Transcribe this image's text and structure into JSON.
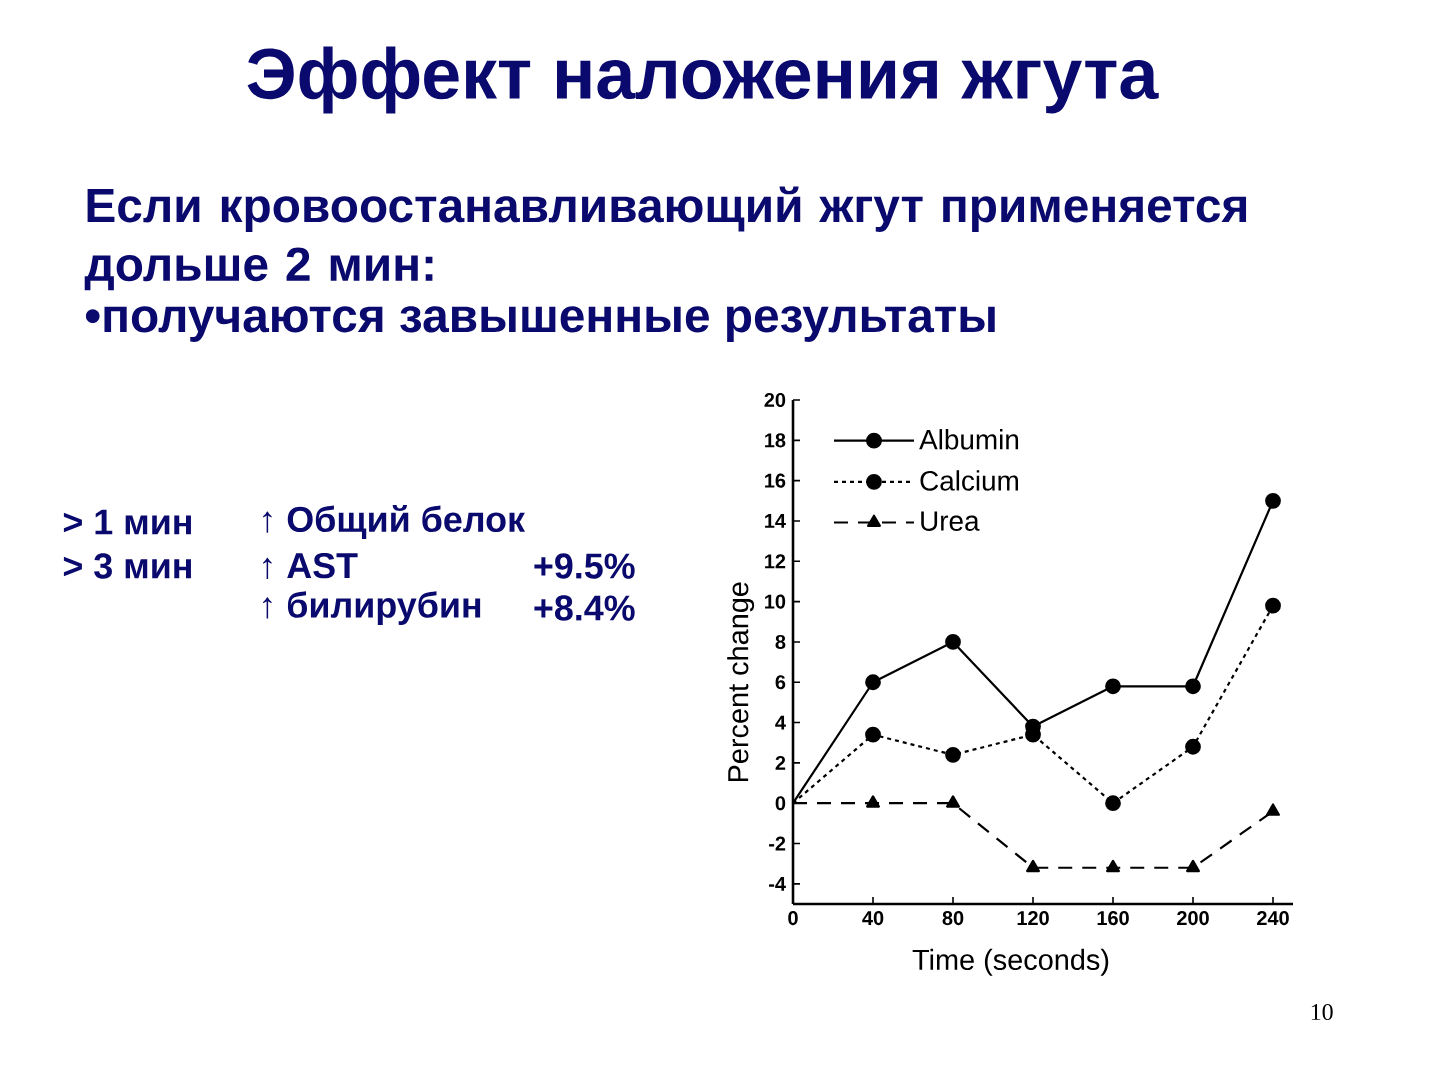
{
  "chart_data": {
    "type": "line",
    "title": "Эффект наложения жгута",
    "subtitle": "Если кровоостанавливающий жгут применяется дольше 2 мин:",
    "annotations": [
      "•получаются завышенные результаты",
      "> 1 мин",
      "> 3 мин",
      "↑ Общий белок",
      "↑ AST",
      "+9.5%",
      "↑ билирубин",
      "+8.4%",
      "10"
    ],
    "xlabel": "Time (seconds)",
    "ylabel": "Percent change",
    "x": [
      0,
      40,
      80,
      120,
      160,
      200,
      240
    ],
    "series": [
      {
        "name": "Albumin",
        "color": "#000000",
        "marker": "circle",
        "line_style": "solid",
        "values": [
          0,
          6,
          8,
          3.8,
          5.8,
          5.8,
          15
        ]
      },
      {
        "name": "Calcium",
        "color": "#000000",
        "marker": "circle",
        "line_style": "dotted",
        "values": [
          0,
          3.4,
          2.4,
          3.4,
          0,
          2.8,
          9.8
        ]
      },
      {
        "name": "Urea",
        "color": "#000000",
        "marker": "triangle",
        "line_style": "dashed",
        "values": [
          0,
          0,
          0,
          -3.2,
          -3.2,
          -3.2,
          -0.4
        ]
      }
    ],
    "xlim": [
      0,
      250
    ],
    "xticks": [
      0,
      40,
      80,
      120,
      160,
      200,
      240
    ],
    "ylim": [
      -5,
      20
    ],
    "yticks": [
      -4,
      -2,
      0,
      2,
      4,
      6,
      8,
      10,
      12,
      14,
      16,
      18,
      20
    ],
    "legend": "top left"
  }
}
